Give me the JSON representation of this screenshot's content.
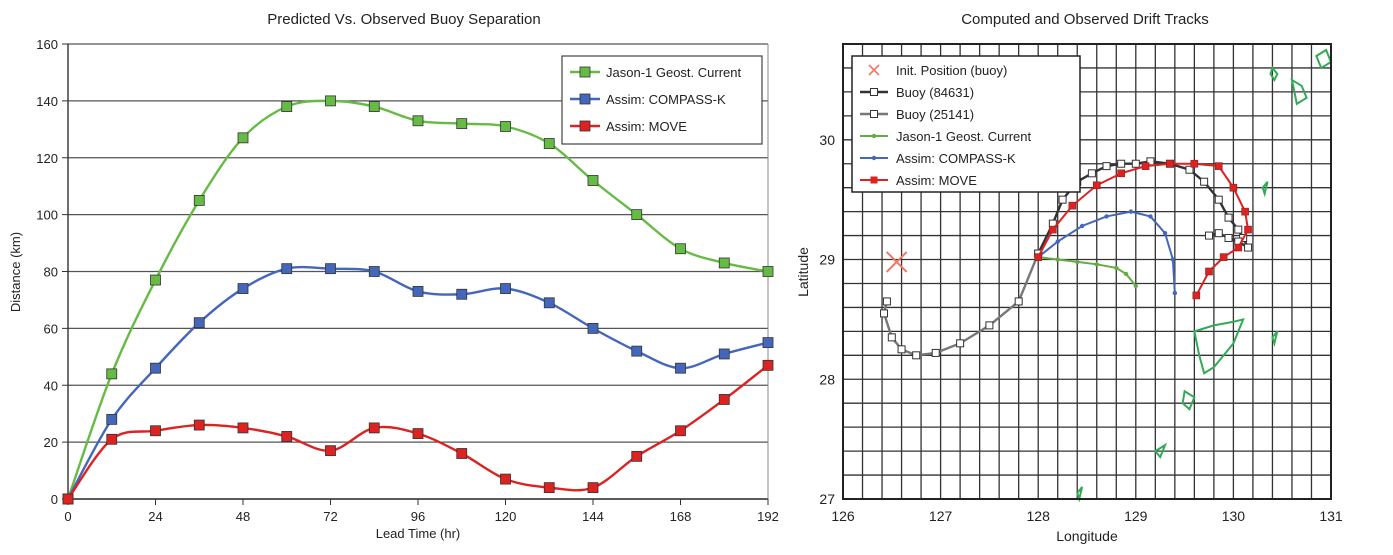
{
  "chart_data": [
    {
      "type": "line",
      "title": "Predicted Vs. Observed Buoy Separation",
      "xlabel": "Lead Time (hr)",
      "ylabel": "Distance (km)",
      "xlim": [
        0,
        192
      ],
      "ylim": [
        0,
        160
      ],
      "xticks": [
        "0",
        "24",
        "48",
        "72",
        "96",
        "120",
        "144",
        "168",
        "192"
      ],
      "yticks": [
        "0",
        "20",
        "40",
        "60",
        "80",
        "100",
        "120",
        "140",
        "160"
      ],
      "grid": "horizontal",
      "legend_position": "top-right",
      "x": [
        0,
        12,
        24,
        36,
        48,
        60,
        72,
        84,
        96,
        108,
        120,
        132,
        144,
        156,
        168,
        180,
        192
      ],
      "series": [
        {
          "name": "Jason-1 Geost. Current",
          "color": "#66bb44",
          "values": [
            0,
            44,
            77,
            105,
            127,
            138,
            140,
            138,
            133,
            132,
            131,
            125,
            112,
            100,
            88,
            83,
            80
          ]
        },
        {
          "name": "Assim: COMPASS-K",
          "color": "#4466bb",
          "values": [
            0,
            28,
            46,
            62,
            74,
            81,
            81,
            80,
            73,
            72,
            74,
            69,
            60,
            52,
            46,
            51,
            55
          ]
        },
        {
          "name": "Assim: MOVE",
          "color": "#dd2222",
          "values": [
            0,
            21,
            24,
            26,
            25,
            22,
            17,
            25,
            23,
            16,
            7,
            4,
            4,
            15,
            24,
            35,
            47
          ]
        }
      ]
    },
    {
      "type": "line",
      "title": "Computed and Observed Drift Tracks",
      "xlabel": "Longitude",
      "ylabel": "Latitude",
      "xlim": [
        126,
        131
      ],
      "ylim": [
        27,
        30.8
      ],
      "xticks": [
        "126",
        "127",
        "128",
        "129",
        "130",
        "131"
      ],
      "yticks": [
        "27",
        "28",
        "29",
        "30"
      ],
      "grid": "both",
      "legend_position": "top-left",
      "init_position": {
        "name": "Init. Position (buoy)",
        "color": "#ee7766",
        "lon": 126.55,
        "lat": 28.98
      },
      "series": [
        {
          "name": "Buoy (84631)",
          "color": "#333333",
          "lon": [
            128.0,
            128.15,
            128.25,
            128.4,
            128.55,
            128.7,
            128.85,
            129.0,
            129.15,
            129.35,
            129.55,
            129.7,
            129.85,
            129.95,
            130.05,
            130.1,
            130.15,
            130.05,
            129.95,
            129.85,
            129.75
          ],
          "lat": [
            29.05,
            29.3,
            29.5,
            29.65,
            29.72,
            29.78,
            29.8,
            29.8,
            29.82,
            29.8,
            29.75,
            29.65,
            29.5,
            29.35,
            29.25,
            29.18,
            29.1,
            29.15,
            29.18,
            29.22,
            29.2
          ]
        },
        {
          "name": "Buoy (25141)",
          "color": "#777777",
          "lon": [
            126.45,
            126.42,
            126.5,
            126.6,
            126.75,
            126.95,
            127.2,
            127.5,
            127.8,
            128.0
          ],
          "lat": [
            28.65,
            28.55,
            28.35,
            28.25,
            28.2,
            28.22,
            28.3,
            28.45,
            28.65,
            29.05
          ]
        },
        {
          "name": "Jason-1 Geost. Current",
          "color": "#66aa44",
          "lon": [
            128.0,
            128.2,
            128.4,
            128.6,
            128.8,
            128.9,
            129.0
          ],
          "lat": [
            29.02,
            29.0,
            28.98,
            28.96,
            28.93,
            28.88,
            28.78
          ]
        },
        {
          "name": "Assim: COMPASS-K",
          "color": "#4466bb",
          "lon": [
            128.0,
            128.2,
            128.45,
            128.7,
            128.95,
            129.15,
            129.3,
            129.38,
            129.4
          ],
          "lat": [
            29.02,
            29.15,
            29.28,
            29.36,
            29.4,
            29.36,
            29.22,
            29.0,
            28.72
          ]
        },
        {
          "name": "Assim: MOVE",
          "color": "#dd2222",
          "lon": [
            128.0,
            128.15,
            128.35,
            128.6,
            128.85,
            129.1,
            129.35,
            129.6,
            129.85,
            130.0,
            130.12,
            130.15,
            130.05,
            129.9,
            129.75,
            129.62
          ],
          "lat": [
            29.02,
            29.25,
            29.45,
            29.62,
            29.72,
            29.78,
            29.8,
            29.8,
            29.78,
            29.6,
            29.4,
            29.25,
            29.1,
            29.02,
            28.9,
            28.7
          ]
        }
      ],
      "land_color": "#33aa55"
    }
  ]
}
